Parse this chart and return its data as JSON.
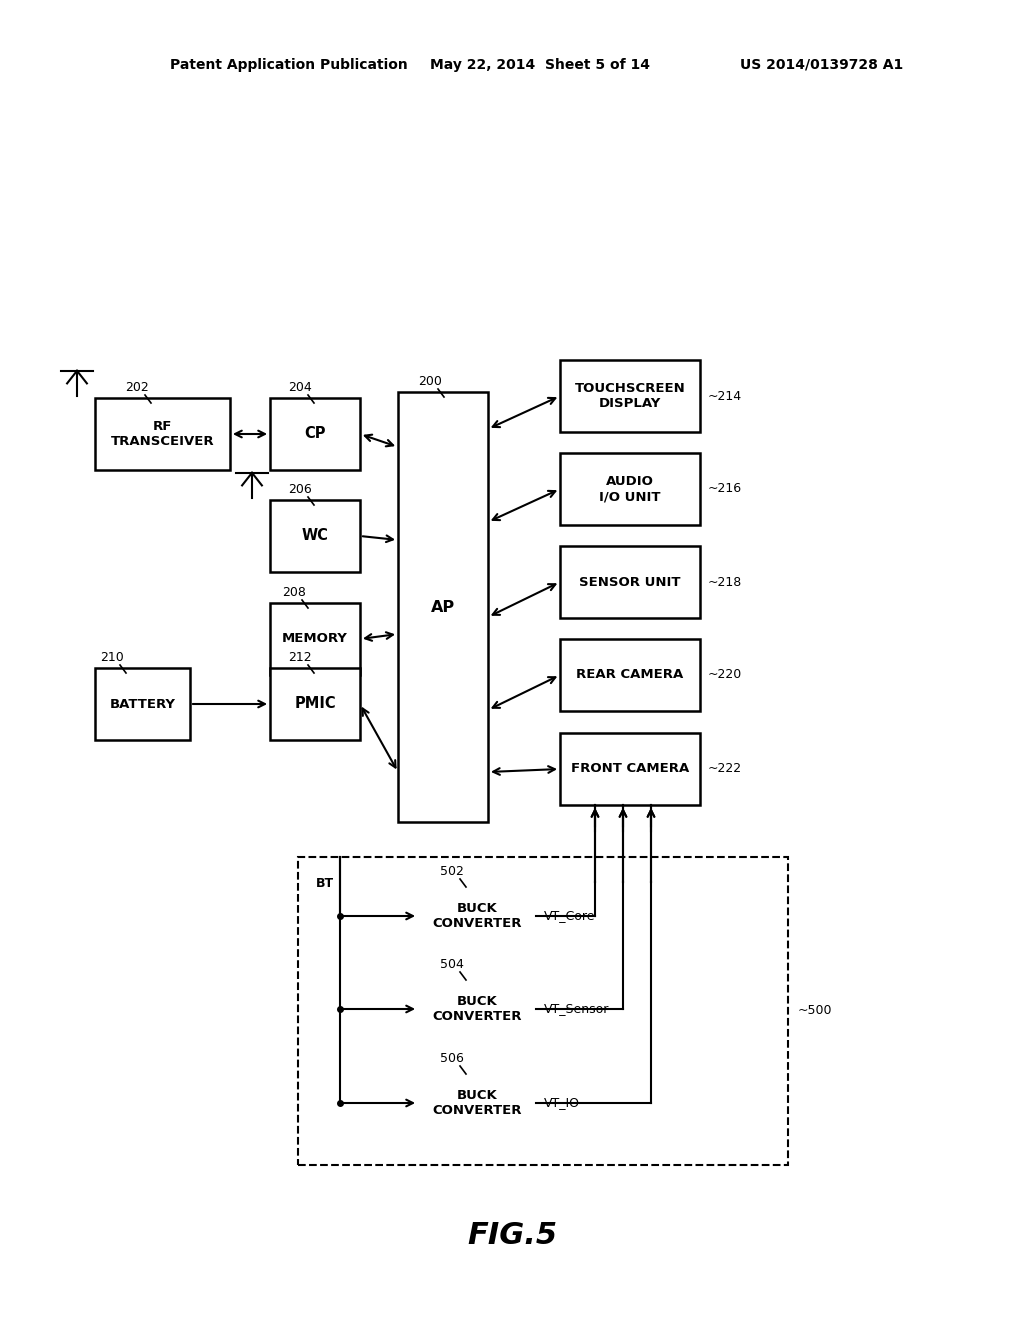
{
  "bg_color": "#ffffff",
  "header_left": "Patent Application Publication",
  "header_mid": "May 22, 2014  Sheet 5 of 14",
  "header_right": "US 2014/0139728 A1",
  "figure_label": "FIG.5"
}
